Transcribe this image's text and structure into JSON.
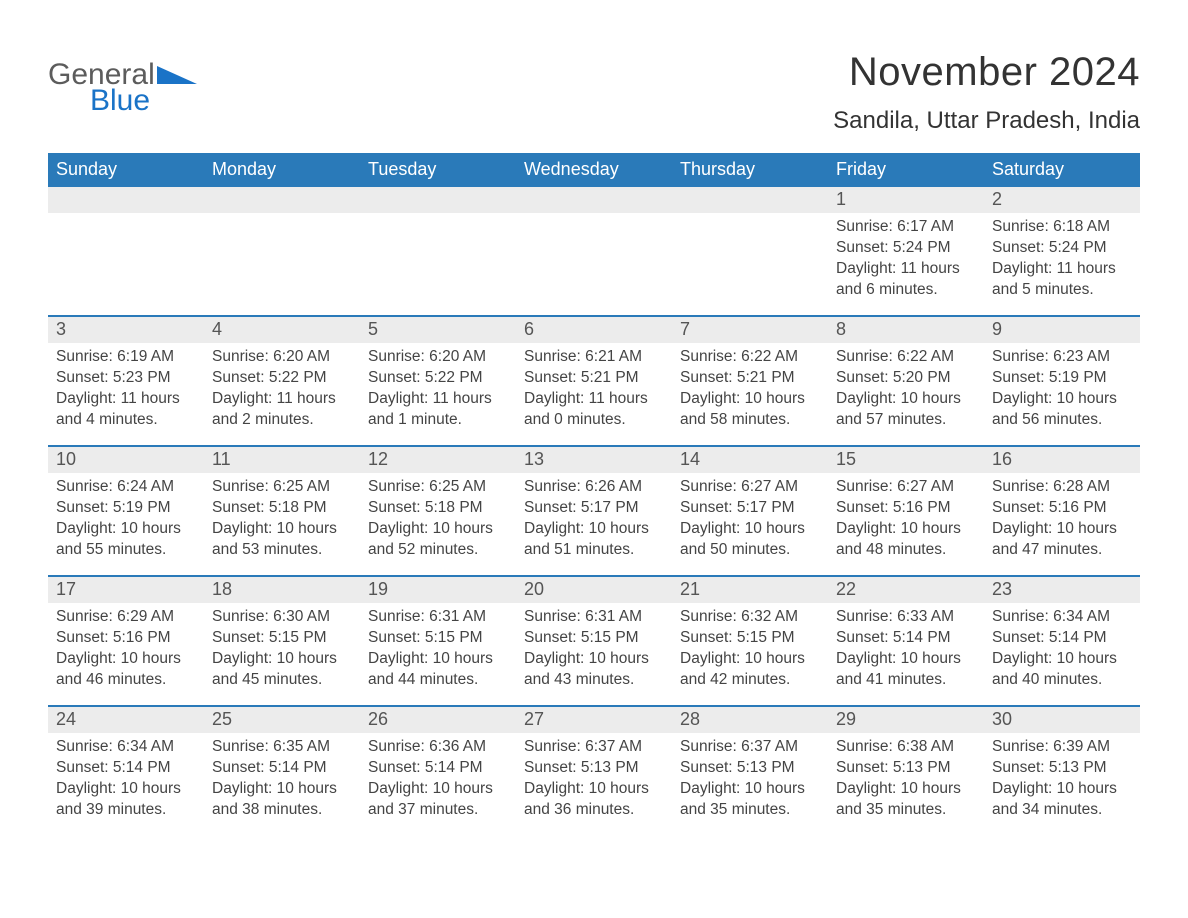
{
  "brand": {
    "word1": "General",
    "word2": "Blue",
    "word1_color": "#5c5c5c",
    "word2_color": "#1a73c7",
    "triangle_color": "#1a73c7"
  },
  "title": "November 2024",
  "location": "Sandila, Uttar Pradesh, India",
  "colors": {
    "header_bg": "#2a7ab9",
    "header_text": "#ffffff",
    "daynum_bg": "#ececec",
    "daynum_text": "#555555",
    "body_text": "#444444",
    "row_border": "#2a7ab9",
    "page_bg": "#ffffff"
  },
  "typography": {
    "title_fontsize": 40,
    "location_fontsize": 24,
    "dow_fontsize": 18,
    "daynum_fontsize": 18,
    "body_fontsize": 15.5,
    "font_family": "Arial"
  },
  "dow": [
    "Sunday",
    "Monday",
    "Tuesday",
    "Wednesday",
    "Thursday",
    "Friday",
    "Saturday"
  ],
  "weeks": [
    [
      {
        "num": "",
        "sunrise": "",
        "sunset": "",
        "daylight": ""
      },
      {
        "num": "",
        "sunrise": "",
        "sunset": "",
        "daylight": ""
      },
      {
        "num": "",
        "sunrise": "",
        "sunset": "",
        "daylight": ""
      },
      {
        "num": "",
        "sunrise": "",
        "sunset": "",
        "daylight": ""
      },
      {
        "num": "",
        "sunrise": "",
        "sunset": "",
        "daylight": ""
      },
      {
        "num": "1",
        "sunrise": "Sunrise: 6:17 AM",
        "sunset": "Sunset: 5:24 PM",
        "daylight": "Daylight: 11 hours and 6 minutes."
      },
      {
        "num": "2",
        "sunrise": "Sunrise: 6:18 AM",
        "sunset": "Sunset: 5:24 PM",
        "daylight": "Daylight: 11 hours and 5 minutes."
      }
    ],
    [
      {
        "num": "3",
        "sunrise": "Sunrise: 6:19 AM",
        "sunset": "Sunset: 5:23 PM",
        "daylight": "Daylight: 11 hours and 4 minutes."
      },
      {
        "num": "4",
        "sunrise": "Sunrise: 6:20 AM",
        "sunset": "Sunset: 5:22 PM",
        "daylight": "Daylight: 11 hours and 2 minutes."
      },
      {
        "num": "5",
        "sunrise": "Sunrise: 6:20 AM",
        "sunset": "Sunset: 5:22 PM",
        "daylight": "Daylight: 11 hours and 1 minute."
      },
      {
        "num": "6",
        "sunrise": "Sunrise: 6:21 AM",
        "sunset": "Sunset: 5:21 PM",
        "daylight": "Daylight: 11 hours and 0 minutes."
      },
      {
        "num": "7",
        "sunrise": "Sunrise: 6:22 AM",
        "sunset": "Sunset: 5:21 PM",
        "daylight": "Daylight: 10 hours and 58 minutes."
      },
      {
        "num": "8",
        "sunrise": "Sunrise: 6:22 AM",
        "sunset": "Sunset: 5:20 PM",
        "daylight": "Daylight: 10 hours and 57 minutes."
      },
      {
        "num": "9",
        "sunrise": "Sunrise: 6:23 AM",
        "sunset": "Sunset: 5:19 PM",
        "daylight": "Daylight: 10 hours and 56 minutes."
      }
    ],
    [
      {
        "num": "10",
        "sunrise": "Sunrise: 6:24 AM",
        "sunset": "Sunset: 5:19 PM",
        "daylight": "Daylight: 10 hours and 55 minutes."
      },
      {
        "num": "11",
        "sunrise": "Sunrise: 6:25 AM",
        "sunset": "Sunset: 5:18 PM",
        "daylight": "Daylight: 10 hours and 53 minutes."
      },
      {
        "num": "12",
        "sunrise": "Sunrise: 6:25 AM",
        "sunset": "Sunset: 5:18 PM",
        "daylight": "Daylight: 10 hours and 52 minutes."
      },
      {
        "num": "13",
        "sunrise": "Sunrise: 6:26 AM",
        "sunset": "Sunset: 5:17 PM",
        "daylight": "Daylight: 10 hours and 51 minutes."
      },
      {
        "num": "14",
        "sunrise": "Sunrise: 6:27 AM",
        "sunset": "Sunset: 5:17 PM",
        "daylight": "Daylight: 10 hours and 50 minutes."
      },
      {
        "num": "15",
        "sunrise": "Sunrise: 6:27 AM",
        "sunset": "Sunset: 5:16 PM",
        "daylight": "Daylight: 10 hours and 48 minutes."
      },
      {
        "num": "16",
        "sunrise": "Sunrise: 6:28 AM",
        "sunset": "Sunset: 5:16 PM",
        "daylight": "Daylight: 10 hours and 47 minutes."
      }
    ],
    [
      {
        "num": "17",
        "sunrise": "Sunrise: 6:29 AM",
        "sunset": "Sunset: 5:16 PM",
        "daylight": "Daylight: 10 hours and 46 minutes."
      },
      {
        "num": "18",
        "sunrise": "Sunrise: 6:30 AM",
        "sunset": "Sunset: 5:15 PM",
        "daylight": "Daylight: 10 hours and 45 minutes."
      },
      {
        "num": "19",
        "sunrise": "Sunrise: 6:31 AM",
        "sunset": "Sunset: 5:15 PM",
        "daylight": "Daylight: 10 hours and 44 minutes."
      },
      {
        "num": "20",
        "sunrise": "Sunrise: 6:31 AM",
        "sunset": "Sunset: 5:15 PM",
        "daylight": "Daylight: 10 hours and 43 minutes."
      },
      {
        "num": "21",
        "sunrise": "Sunrise: 6:32 AM",
        "sunset": "Sunset: 5:15 PM",
        "daylight": "Daylight: 10 hours and 42 minutes."
      },
      {
        "num": "22",
        "sunrise": "Sunrise: 6:33 AM",
        "sunset": "Sunset: 5:14 PM",
        "daylight": "Daylight: 10 hours and 41 minutes."
      },
      {
        "num": "23",
        "sunrise": "Sunrise: 6:34 AM",
        "sunset": "Sunset: 5:14 PM",
        "daylight": "Daylight: 10 hours and 40 minutes."
      }
    ],
    [
      {
        "num": "24",
        "sunrise": "Sunrise: 6:34 AM",
        "sunset": "Sunset: 5:14 PM",
        "daylight": "Daylight: 10 hours and 39 minutes."
      },
      {
        "num": "25",
        "sunrise": "Sunrise: 6:35 AM",
        "sunset": "Sunset: 5:14 PM",
        "daylight": "Daylight: 10 hours and 38 minutes."
      },
      {
        "num": "26",
        "sunrise": "Sunrise: 6:36 AM",
        "sunset": "Sunset: 5:14 PM",
        "daylight": "Daylight: 10 hours and 37 minutes."
      },
      {
        "num": "27",
        "sunrise": "Sunrise: 6:37 AM",
        "sunset": "Sunset: 5:13 PM",
        "daylight": "Daylight: 10 hours and 36 minutes."
      },
      {
        "num": "28",
        "sunrise": "Sunrise: 6:37 AM",
        "sunset": "Sunset: 5:13 PM",
        "daylight": "Daylight: 10 hours and 35 minutes."
      },
      {
        "num": "29",
        "sunrise": "Sunrise: 6:38 AM",
        "sunset": "Sunset: 5:13 PM",
        "daylight": "Daylight: 10 hours and 35 minutes."
      },
      {
        "num": "30",
        "sunrise": "Sunrise: 6:39 AM",
        "sunset": "Sunset: 5:13 PM",
        "daylight": "Daylight: 10 hours and 34 minutes."
      }
    ]
  ]
}
